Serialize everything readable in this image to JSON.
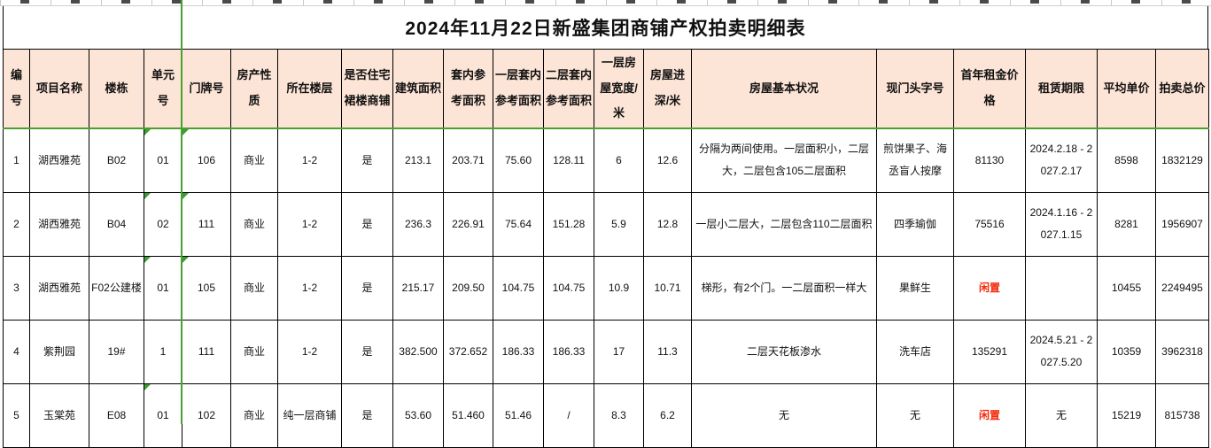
{
  "app": {
    "type": "spreadsheet-view"
  },
  "title": "2024年11月22日新盛集团商铺产权拍卖明细表",
  "colors": {
    "header_bg": "#fce4d6",
    "grid_line": "#000000",
    "accent_green": "#4aa02c",
    "idle_red": "#f42a0c",
    "minor_grid": "#c9c9c9"
  },
  "table": {
    "columns": [
      {
        "label": "编号"
      },
      {
        "label": "项目名称"
      },
      {
        "label": "楼栋"
      },
      {
        "label": "单元号"
      },
      {
        "label": "门牌号"
      },
      {
        "label": "房产性质"
      },
      {
        "label": "所在楼层"
      },
      {
        "label": "是否住宅裙楼商铺"
      },
      {
        "label": "建筑面积"
      },
      {
        "label": "套内参考面积"
      },
      {
        "label": "一层套内参考面积"
      },
      {
        "label": "二层套内参考面积"
      },
      {
        "label": "一层房屋宽度/米"
      },
      {
        "label": "房屋进深/米"
      },
      {
        "label": "房屋基本状况"
      },
      {
        "label": "现门头字号"
      },
      {
        "label": "首年租金价格"
      },
      {
        "label": "租赁期限"
      },
      {
        "label": "平均单价"
      },
      {
        "label": "拍卖总价"
      }
    ],
    "rows": [
      {
        "cells": [
          "1",
          "湖西雅苑",
          "B02",
          "01",
          "106",
          "商业",
          "1-2",
          "是",
          "213.1",
          "203.71",
          "75.60",
          "128.11",
          "6",
          "12.6",
          "分隔为两间使用。一层面积小，二层大，二层包含105二层面积",
          "煎饼果子、海丞盲人按摩",
          "81130",
          "2024.2.18 - 2027.2.17",
          "8598",
          "1832129"
        ],
        "red_cols": [],
        "triangle_cols": [
          3,
          4
        ]
      },
      {
        "cells": [
          "2",
          "湖西雅苑",
          "B04",
          "02",
          "111",
          "商业",
          "1-2",
          "是",
          "236.3",
          "226.91",
          "75.64",
          "151.28",
          "5.9",
          "12.8",
          "一层小二层大，二层包含110二层面积",
          "四季瑜伽",
          "75516",
          "2024.1.16 - 2027.1.15",
          "8281",
          "1956907"
        ],
        "red_cols": [],
        "triangle_cols": [
          3,
          4
        ]
      },
      {
        "cells": [
          "3",
          "湖西雅苑",
          "F02公建楼",
          "01",
          "105",
          "商业",
          "1-2",
          "是",
          "215.17",
          "209.50",
          "104.75",
          "104.75",
          "10.9",
          "10.71",
          "梯形，有2个门。一二层面积一样大",
          "果鲜生",
          "闲置",
          "",
          "10455",
          "2249495"
        ],
        "red_cols": [
          16
        ],
        "triangle_cols": [
          3,
          4
        ]
      },
      {
        "cells": [
          "4",
          "紫荆园",
          "19#",
          "1",
          "111",
          "商业",
          "1-2",
          "是",
          "382.500",
          "372.652",
          "186.33",
          "186.33",
          "17",
          "11.3",
          "二层天花板渗水",
          "洗车店",
          "135291",
          "2024.5.21 - 2027.5.20",
          "10359",
          "3962318"
        ],
        "red_cols": [],
        "triangle_cols": []
      },
      {
        "cells": [
          "5",
          "玉棠苑",
          "E08",
          "01",
          "102",
          "商业",
          "纯一层商铺",
          "是",
          "53.60",
          "51.460",
          "51.46",
          "/",
          "8.3",
          "6.2",
          "无",
          "无",
          "闲置",
          "无",
          "15219",
          "815738"
        ],
        "red_cols": [
          16
        ],
        "triangle_cols": [
          3
        ]
      }
    ]
  }
}
